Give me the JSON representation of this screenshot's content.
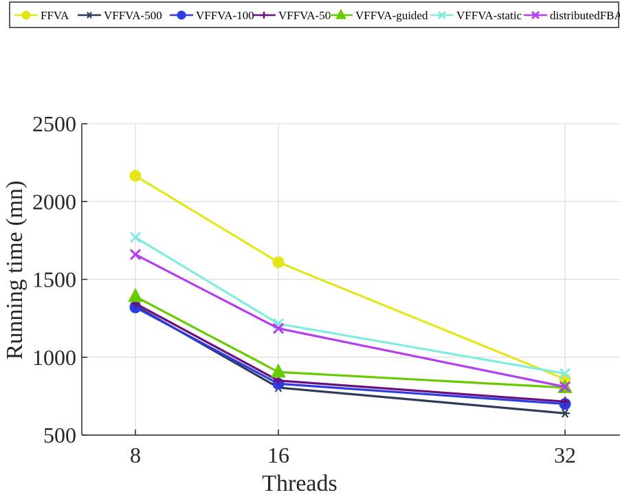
{
  "chart_data": {
    "type": "line",
    "title": "",
    "xlabel": "Threads",
    "ylabel": "Running time (mn)",
    "categories": [
      "8",
      "16",
      "32"
    ],
    "x": [
      8,
      16,
      32
    ],
    "ylim": [
      500,
      2500
    ],
    "yticks": [
      500,
      1000,
      1500,
      2000,
      2500
    ],
    "grid": true,
    "legend_position": "top",
    "series": [
      {
        "name": "FFVA",
        "values": [
          2165,
          1610,
          860
        ],
        "color": "#e5e619",
        "marker": "circle"
      },
      {
        "name": "VFFVA-500",
        "values": [
          1330,
          805,
          640
        ],
        "color": "#2f3a5c",
        "marker": "asterisk"
      },
      {
        "name": "VFFVA-100",
        "values": [
          1320,
          830,
          700
        ],
        "color": "#2b3de0",
        "marker": "circle"
      },
      {
        "name": "VFFVA-50",
        "values": [
          1345,
          850,
          715
        ],
        "color": "#6a0f80",
        "marker": "plus"
      },
      {
        "name": "VFFVA-guided",
        "values": [
          1390,
          905,
          805
        ],
        "color": "#66cc00",
        "marker": "triangle"
      },
      {
        "name": "VFFVA-static",
        "values": [
          1770,
          1215,
          895
        ],
        "color": "#80ece0",
        "marker": "cross"
      },
      {
        "name": "distributedFBA",
        "values": [
          1660,
          1185,
          810
        ],
        "color": "#b53cf0",
        "marker": "cross"
      }
    ]
  }
}
